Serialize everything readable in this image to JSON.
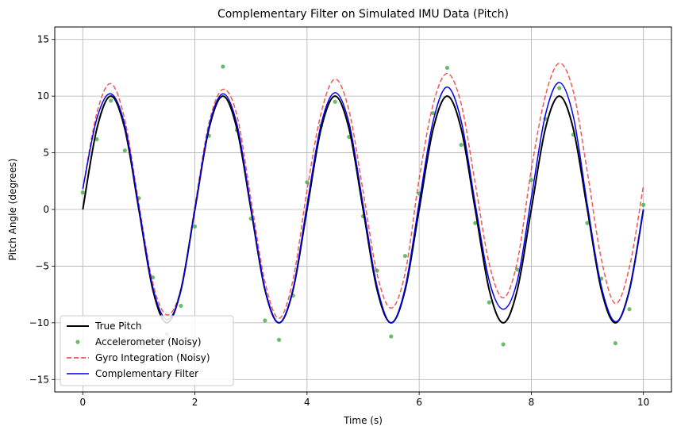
{
  "chart_data": {
    "type": "line",
    "title": "Complementary Filter on Simulated IMU Data (Pitch)",
    "xlabel": "Time (s)",
    "ylabel": "Pitch Angle (degrees)",
    "xlim": [
      -0.5,
      10.5
    ],
    "ylim": [
      -16.1,
      16.1
    ],
    "xticks": [
      0,
      2,
      4,
      6,
      8,
      10
    ],
    "yticks": [
      -15,
      -10,
      -5,
      0,
      5,
      10,
      15
    ],
    "grid": true,
    "legend_position": "lower-left",
    "x": [
      0,
      0.25,
      0.5,
      0.75,
      1.0,
      1.25,
      1.5,
      1.75,
      2.0,
      2.25,
      2.5,
      2.75,
      3.0,
      3.25,
      3.5,
      3.75,
      4.0,
      4.25,
      4.5,
      4.75,
      5.0,
      5.25,
      5.5,
      5.75,
      6.0,
      6.25,
      6.5,
      6.75,
      7.0,
      7.25,
      7.5,
      7.75,
      8.0,
      8.25,
      8.5,
      8.75,
      9.0,
      9.25,
      9.5,
      9.75,
      10.0
    ],
    "series": [
      {
        "name": "True Pitch",
        "style": "solid",
        "color": "#000000",
        "width": 2,
        "values": [
          0,
          7.1,
          10,
          7.1,
          0,
          -7.1,
          -10,
          -7.1,
          0,
          7.1,
          10,
          7.1,
          0,
          -7.1,
          -10,
          -7.1,
          0,
          7.1,
          10,
          7.1,
          0,
          -7.1,
          -10,
          -7.1,
          0,
          7.1,
          10,
          7.1,
          0,
          -7.1,
          -10,
          -7.1,
          0,
          7.1,
          10,
          7.1,
          0,
          -7.1,
          -10,
          -7.1,
          0
        ]
      },
      {
        "name": "Accelerometer (Noisy)",
        "style": "markers",
        "color": "#2ca02c",
        "values": [
          1.5,
          6.2,
          9.6,
          5.2,
          1.0,
          -6.0,
          -11.0,
          -8.5,
          -1.5,
          6.5,
          12.6,
          7.0,
          -0.8,
          -9.8,
          -11.5,
          -7.6,
          2.4,
          7.4,
          9.5,
          6.4,
          -0.6,
          -5.4,
          -11.2,
          -4.1,
          1.4,
          8.5,
          12.5,
          5.7,
          -1.2,
          -8.2,
          -11.9,
          -5.3,
          2.6,
          8.0,
          10.7,
          6.6,
          -1.2,
          -6.1,
          -11.8,
          -8.8,
          0.4
        ]
      },
      {
        "name": "Gyro Integration (Noisy)",
        "style": "dashed",
        "color": "#ef3b3b",
        "width": 1.5,
        "values": [
          1.8,
          8.5,
          11.1,
          7.9,
          0.5,
          -6.5,
          -9.3,
          -7.0,
          0.3,
          7.6,
          10.6,
          8.3,
          0.9,
          -6.4,
          -9.6,
          -6.2,
          1.7,
          8.5,
          11.5,
          8.7,
          1.6,
          -5.7,
          -8.7,
          -5.6,
          2.7,
          9.3,
          12.0,
          9.3,
          2.3,
          -4.8,
          -7.8,
          -4.6,
          3.5,
          10.0,
          12.9,
          10.4,
          3.3,
          -4.4,
          -8.3,
          -5.1,
          2.1
        ]
      },
      {
        "name": "Complementary Filter",
        "style": "solid",
        "color": "#0000ee",
        "width": 1.5,
        "values": [
          1.8,
          8.0,
          10.2,
          7.4,
          0.2,
          -6.9,
          -9.7,
          -7.2,
          0.0,
          7.3,
          10.2,
          7.5,
          0.2,
          -7.0,
          -10.0,
          -7.0,
          0.4,
          7.5,
          10.3,
          7.6,
          0.4,
          -6.8,
          -10.0,
          -6.9,
          0.6,
          7.8,
          10.8,
          7.8,
          0.5,
          -6.3,
          -8.8,
          -6.3,
          1.0,
          8.3,
          11.2,
          8.2,
          0.4,
          -6.8,
          -9.9,
          -7.2,
          0.0
        ]
      }
    ]
  }
}
